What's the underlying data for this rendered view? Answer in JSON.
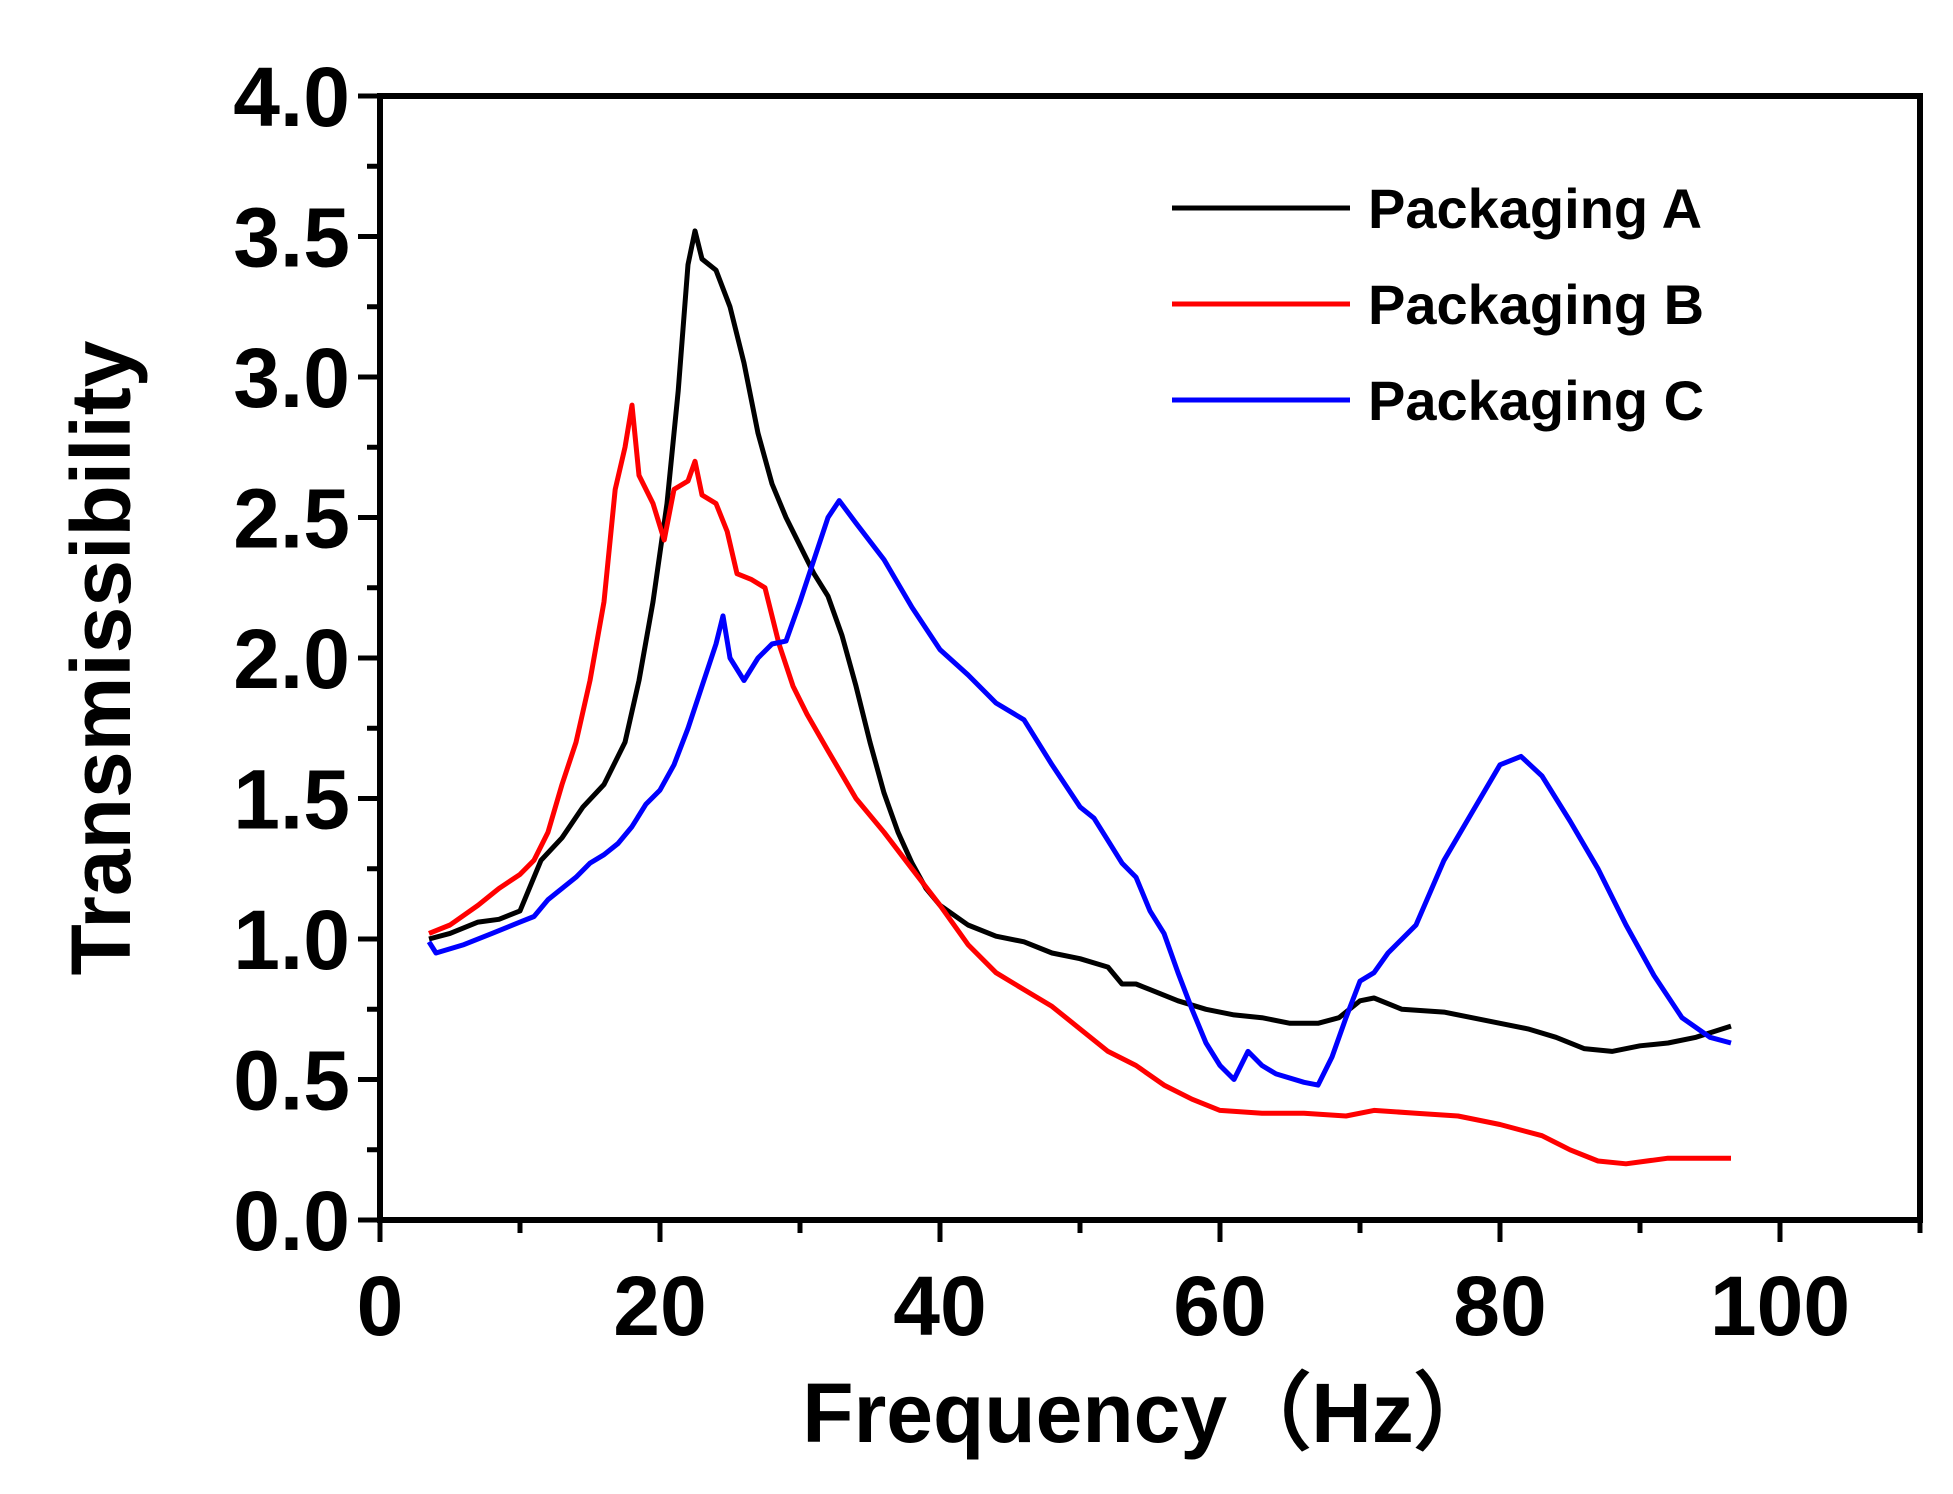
{
  "chart_data": {
    "type": "line",
    "title": "",
    "xlabel": "Frequency（Hz）",
    "ylabel": "Transmissibility",
    "xlim": [
      0,
      110
    ],
    "ylim": [
      0,
      4.0
    ],
    "xticks": [
      0,
      20,
      40,
      60,
      80,
      100
    ],
    "xtick_labels": [
      "0",
      "20",
      "40",
      "60",
      "80",
      "100"
    ],
    "yticks": [
      0.0,
      0.5,
      1.0,
      1.5,
      2.0,
      2.5,
      3.0,
      3.5,
      4.0
    ],
    "ytick_labels": [
      "0.0",
      "0.5",
      "1.0",
      "1.5",
      "2.0",
      "2.5",
      "3.0",
      "3.5",
      "4.0"
    ],
    "grid": false,
    "legend_position": "top-right",
    "series": [
      {
        "name": "Packaging A",
        "color": "#000000",
        "points": [
          [
            3.5,
            1.0
          ],
          [
            5,
            1.02
          ],
          [
            7,
            1.06
          ],
          [
            8.5,
            1.07
          ],
          [
            10,
            1.1
          ],
          [
            11.5,
            1.28
          ],
          [
            13,
            1.36
          ],
          [
            14.5,
            1.47
          ],
          [
            16,
            1.55
          ],
          [
            17.5,
            1.7
          ],
          [
            18.5,
            1.92
          ],
          [
            19.5,
            2.2
          ],
          [
            20.5,
            2.55
          ],
          [
            21.3,
            2.95
          ],
          [
            22,
            3.4
          ],
          [
            22.5,
            3.52
          ],
          [
            23,
            3.42
          ],
          [
            24,
            3.38
          ],
          [
            25,
            3.25
          ],
          [
            26,
            3.05
          ],
          [
            27,
            2.8
          ],
          [
            28,
            2.62
          ],
          [
            29,
            2.5
          ],
          [
            30,
            2.4
          ],
          [
            31,
            2.3
          ],
          [
            32,
            2.22
          ],
          [
            33,
            2.08
          ],
          [
            34,
            1.9
          ],
          [
            35,
            1.7
          ],
          [
            36,
            1.52
          ],
          [
            37,
            1.38
          ],
          [
            38,
            1.27
          ],
          [
            39,
            1.18
          ],
          [
            40,
            1.12
          ],
          [
            42,
            1.05
          ],
          [
            44,
            1.01
          ],
          [
            46,
            0.99
          ],
          [
            48,
            0.95
          ],
          [
            50,
            0.93
          ],
          [
            52,
            0.9
          ],
          [
            53,
            0.84
          ],
          [
            54,
            0.84
          ],
          [
            55,
            0.82
          ],
          [
            57,
            0.78
          ],
          [
            59,
            0.75
          ],
          [
            61,
            0.73
          ],
          [
            63,
            0.72
          ],
          [
            65,
            0.7
          ],
          [
            67,
            0.7
          ],
          [
            68.5,
            0.72
          ],
          [
            70,
            0.78
          ],
          [
            71,
            0.79
          ],
          [
            73,
            0.75
          ],
          [
            76,
            0.74
          ],
          [
            78,
            0.72
          ],
          [
            80,
            0.7
          ],
          [
            82,
            0.68
          ],
          [
            84,
            0.65
          ],
          [
            86,
            0.61
          ],
          [
            88,
            0.6
          ],
          [
            90,
            0.62
          ],
          [
            92,
            0.63
          ],
          [
            94,
            0.65
          ],
          [
            96.5,
            0.69
          ]
        ]
      },
      {
        "name": "Packaging B",
        "color": "#ff0000",
        "points": [
          [
            3.5,
            1.02
          ],
          [
            5,
            1.05
          ],
          [
            7,
            1.12
          ],
          [
            8.5,
            1.18
          ],
          [
            10,
            1.23
          ],
          [
            11,
            1.28
          ],
          [
            12,
            1.38
          ],
          [
            13,
            1.55
          ],
          [
            14,
            1.7
          ],
          [
            15,
            1.92
          ],
          [
            16,
            2.2
          ],
          [
            16.8,
            2.6
          ],
          [
            17.5,
            2.75
          ],
          [
            18,
            2.9
          ],
          [
            18.5,
            2.65
          ],
          [
            19.5,
            2.55
          ],
          [
            20.3,
            2.42
          ],
          [
            21,
            2.6
          ],
          [
            22,
            2.63
          ],
          [
            22.5,
            2.7
          ],
          [
            23,
            2.58
          ],
          [
            24,
            2.55
          ],
          [
            24.8,
            2.45
          ],
          [
            25.5,
            2.3
          ],
          [
            26.5,
            2.28
          ],
          [
            27.5,
            2.25
          ],
          [
            28.5,
            2.05
          ],
          [
            29.5,
            1.9
          ],
          [
            30.5,
            1.8
          ],
          [
            32,
            1.67
          ],
          [
            34,
            1.5
          ],
          [
            36,
            1.38
          ],
          [
            38,
            1.25
          ],
          [
            40,
            1.12
          ],
          [
            42,
            0.98
          ],
          [
            44,
            0.88
          ],
          [
            46,
            0.82
          ],
          [
            48,
            0.76
          ],
          [
            50,
            0.68
          ],
          [
            52,
            0.6
          ],
          [
            54,
            0.55
          ],
          [
            56,
            0.48
          ],
          [
            58,
            0.43
          ],
          [
            60,
            0.39
          ],
          [
            63,
            0.38
          ],
          [
            66,
            0.38
          ],
          [
            69,
            0.37
          ],
          [
            71,
            0.39
          ],
          [
            74,
            0.38
          ],
          [
            77,
            0.37
          ],
          [
            80,
            0.34
          ],
          [
            83,
            0.3
          ],
          [
            85,
            0.25
          ],
          [
            87,
            0.21
          ],
          [
            89,
            0.2
          ],
          [
            92,
            0.22
          ],
          [
            96.5,
            0.22
          ]
        ]
      },
      {
        "name": "Packaging C",
        "color": "#0000ff",
        "points": [
          [
            3.5,
            0.99
          ],
          [
            4,
            0.95
          ],
          [
            6,
            0.98
          ],
          [
            8,
            1.02
          ],
          [
            10,
            1.06
          ],
          [
            11,
            1.08
          ],
          [
            12,
            1.14
          ],
          [
            13,
            1.18
          ],
          [
            14,
            1.22
          ],
          [
            15,
            1.27
          ],
          [
            16,
            1.3
          ],
          [
            17,
            1.34
          ],
          [
            18,
            1.4
          ],
          [
            19,
            1.48
          ],
          [
            20,
            1.53
          ],
          [
            21,
            1.62
          ],
          [
            22,
            1.75
          ],
          [
            23,
            1.9
          ],
          [
            24,
            2.05
          ],
          [
            24.5,
            2.15
          ],
          [
            25,
            2.0
          ],
          [
            26,
            1.92
          ],
          [
            27,
            2.0
          ],
          [
            28,
            2.05
          ],
          [
            29,
            2.06
          ],
          [
            30,
            2.2
          ],
          [
            31,
            2.35
          ],
          [
            32,
            2.5
          ],
          [
            32.8,
            2.56
          ],
          [
            34,
            2.48
          ],
          [
            36,
            2.35
          ],
          [
            38,
            2.18
          ],
          [
            40,
            2.03
          ],
          [
            42,
            1.94
          ],
          [
            44,
            1.84
          ],
          [
            46,
            1.78
          ],
          [
            48,
            1.62
          ],
          [
            50,
            1.47
          ],
          [
            51,
            1.43
          ],
          [
            52,
            1.35
          ],
          [
            53,
            1.27
          ],
          [
            54,
            1.22
          ],
          [
            55,
            1.1
          ],
          [
            56,
            1.02
          ],
          [
            57,
            0.88
          ],
          [
            58,
            0.75
          ],
          [
            59,
            0.63
          ],
          [
            60,
            0.55
          ],
          [
            61,
            0.5
          ],
          [
            62,
            0.6
          ],
          [
            63,
            0.55
          ],
          [
            64,
            0.52
          ],
          [
            66,
            0.49
          ],
          [
            67,
            0.48
          ],
          [
            68,
            0.58
          ],
          [
            69,
            0.72
          ],
          [
            70,
            0.85
          ],
          [
            71,
            0.88
          ],
          [
            72,
            0.95
          ],
          [
            74,
            1.05
          ],
          [
            76,
            1.28
          ],
          [
            78,
            1.45
          ],
          [
            80,
            1.62
          ],
          [
            81.5,
            1.65
          ],
          [
            83,
            1.58
          ],
          [
            85,
            1.42
          ],
          [
            87,
            1.25
          ],
          [
            89,
            1.05
          ],
          [
            91,
            0.87
          ],
          [
            93,
            0.72
          ],
          [
            95,
            0.65
          ],
          [
            96.5,
            0.63
          ]
        ]
      }
    ]
  }
}
